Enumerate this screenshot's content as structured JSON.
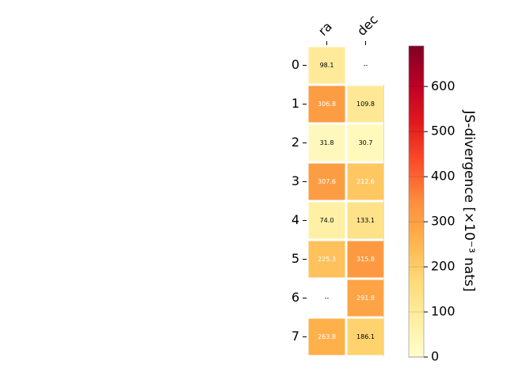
{
  "chart_data": {
    "type": "heatmap",
    "columns": [
      "ra",
      "dec"
    ],
    "rows": [
      "0",
      "1",
      "2",
      "3",
      "4",
      "5",
      "6",
      "7"
    ],
    "values": [
      [
        98.1,
        null
      ],
      [
        306.8,
        109.8
      ],
      [
        31.8,
        30.7
      ],
      [
        307.6,
        212.6
      ],
      [
        74.0,
        133.1
      ],
      [
        225.3,
        315.8
      ],
      [
        null,
        291.8
      ],
      [
        263.8,
        186.1
      ]
    ],
    "missing_label": "--",
    "colorbar": {
      "label": "JS-divergence [×10⁻³ nats]",
      "min": 0,
      "max": 690,
      "ticks": [
        0,
        100,
        200,
        300,
        400,
        500,
        600
      ],
      "colormap": "YlOrRd"
    }
  }
}
